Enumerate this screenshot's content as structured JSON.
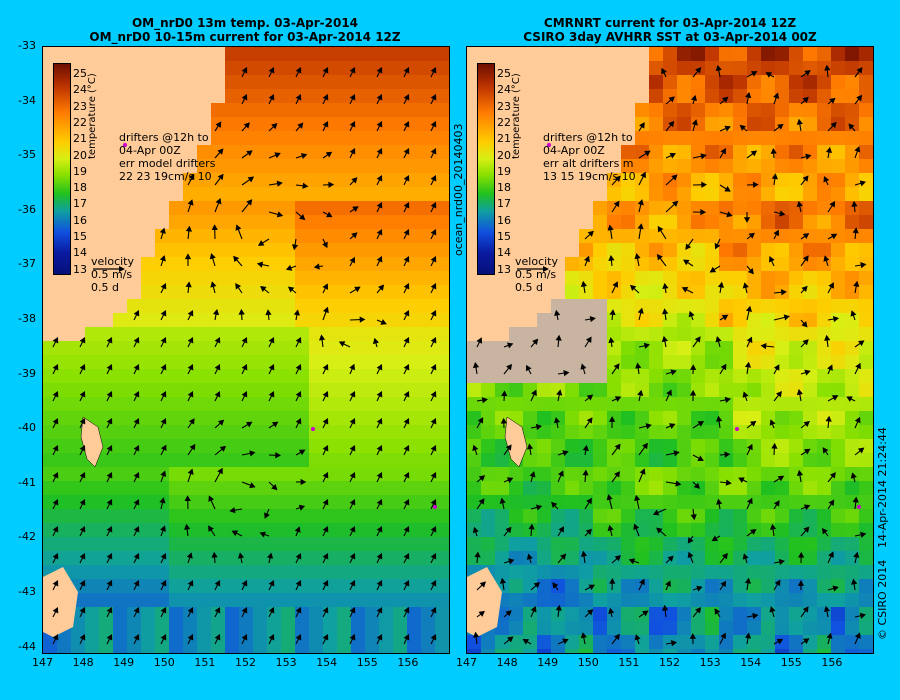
{
  "left_panel": {
    "title_line1": "OM_nrD0 13m temp. 03-Apr-2014",
    "title_line2": "OM_nrD0 10-15m current for 03-Apr-2014 12Z",
    "info_lines": [
      "drifters @12h to",
      "04-Apr 00Z",
      "err model drifters",
      "22 23 19cm/s 10"
    ]
  },
  "right_panel": {
    "title_line1": "CMRNRT current for 03-Apr-2014 12Z",
    "title_line2": "CSIRO 3day AVHRR SST at 03-Apr-2014 00Z",
    "info_lines": [
      "drifters @12h to",
      "04-Apr 00Z",
      "err alt drifters m",
      "13 15 19cm/s 10"
    ]
  },
  "colorbar": {
    "title": "temperature (°C)",
    "ticks": [
      "25",
      "24",
      "23",
      "22",
      "21",
      "20",
      "19",
      "18",
      "17",
      "16",
      "15",
      "14",
      "13"
    ]
  },
  "velocity_legend": {
    "label": "velocity",
    "speed": "0.5 m/s",
    "duration": "0.5 d"
  },
  "y_ticks": [
    "-33",
    "-34",
    "-35",
    "-36",
    "-37",
    "-38",
    "-39",
    "-40",
    "-41",
    "-42",
    "-43",
    "-44"
  ],
  "x_ticks": [
    "147",
    "148",
    "149",
    "150",
    "151",
    "152",
    "153",
    "154",
    "155",
    "156"
  ],
  "side_labels": {
    "run_id": "ocean_nrd00_20140403",
    "timestamp": "14-Apr-2014 21:24:44",
    "copyright": "© CSIRO 2014"
  },
  "colors": {
    "background": "#00ccff",
    "land": "#ffcc99",
    "no_data": "#c8b4a0",
    "drifter": "#cc00cc"
  }
}
